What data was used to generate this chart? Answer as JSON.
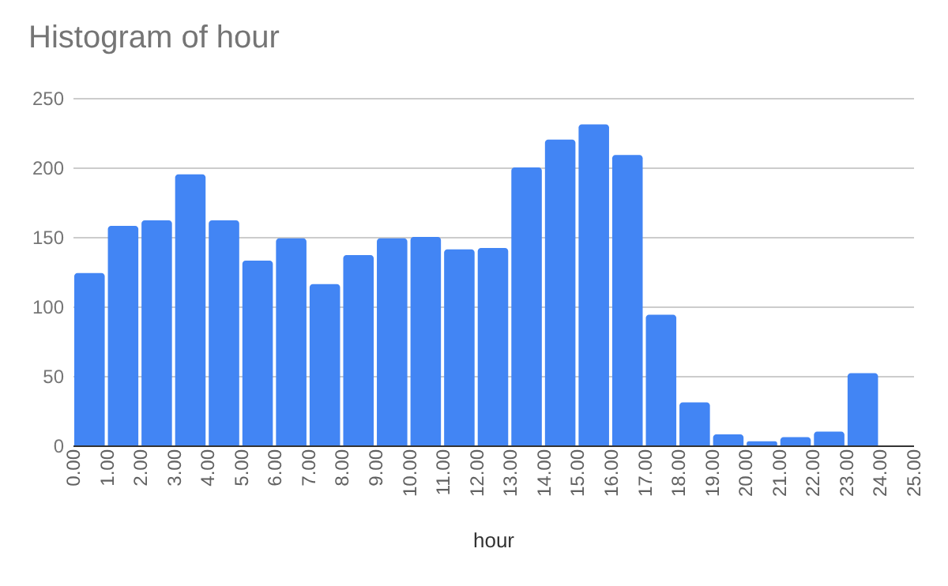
{
  "chart_data": {
    "type": "histogram",
    "title": "Histogram of hour",
    "xlabel": "hour",
    "bins": [
      0,
      1,
      2,
      3,
      4,
      5,
      6,
      7,
      8,
      9,
      10,
      11,
      12,
      13,
      14,
      15,
      16,
      17,
      18,
      19,
      20,
      21,
      22,
      23,
      24
    ],
    "values": [
      124,
      158,
      162,
      195,
      162,
      133,
      149,
      116,
      137,
      149,
      150,
      141,
      142,
      200,
      220,
      231,
      209,
      94,
      31,
      8,
      3,
      6,
      10,
      52
    ],
    "color": "#4285f4",
    "xlim": [
      0,
      25
    ],
    "xticks": [
      {
        "value": 0,
        "label": "0.00"
      },
      {
        "value": 1,
        "label": "1.00"
      },
      {
        "value": 2,
        "label": "2.00"
      },
      {
        "value": 3,
        "label": "3.00"
      },
      {
        "value": 4,
        "label": "4.00"
      },
      {
        "value": 5,
        "label": "5.00"
      },
      {
        "value": 6,
        "label": "6.00"
      },
      {
        "value": 7,
        "label": "7.00"
      },
      {
        "value": 8,
        "label": "8.00"
      },
      {
        "value": 9,
        "label": "9.00"
      },
      {
        "value": 10,
        "label": "10.00"
      },
      {
        "value": 11,
        "label": "11.00"
      },
      {
        "value": 12,
        "label": "12.00"
      },
      {
        "value": 13,
        "label": "13.00"
      },
      {
        "value": 14,
        "label": "14.00"
      },
      {
        "value": 15,
        "label": "15.00"
      },
      {
        "value": 16,
        "label": "16.00"
      },
      {
        "value": 17,
        "label": "17.00"
      },
      {
        "value": 18,
        "label": "18.00"
      },
      {
        "value": 19,
        "label": "19.00"
      },
      {
        "value": 20,
        "label": "20.00"
      },
      {
        "value": 21,
        "label": "21.00"
      },
      {
        "value": 22,
        "label": "22.00"
      },
      {
        "value": 23,
        "label": "23.00"
      },
      {
        "value": 24,
        "label": "24.00"
      },
      {
        "value": 25,
        "label": "25.00"
      }
    ],
    "ylim": [
      0,
      250
    ],
    "yticks": [
      0,
      50,
      100,
      150,
      200,
      250
    ],
    "grid": "y"
  }
}
